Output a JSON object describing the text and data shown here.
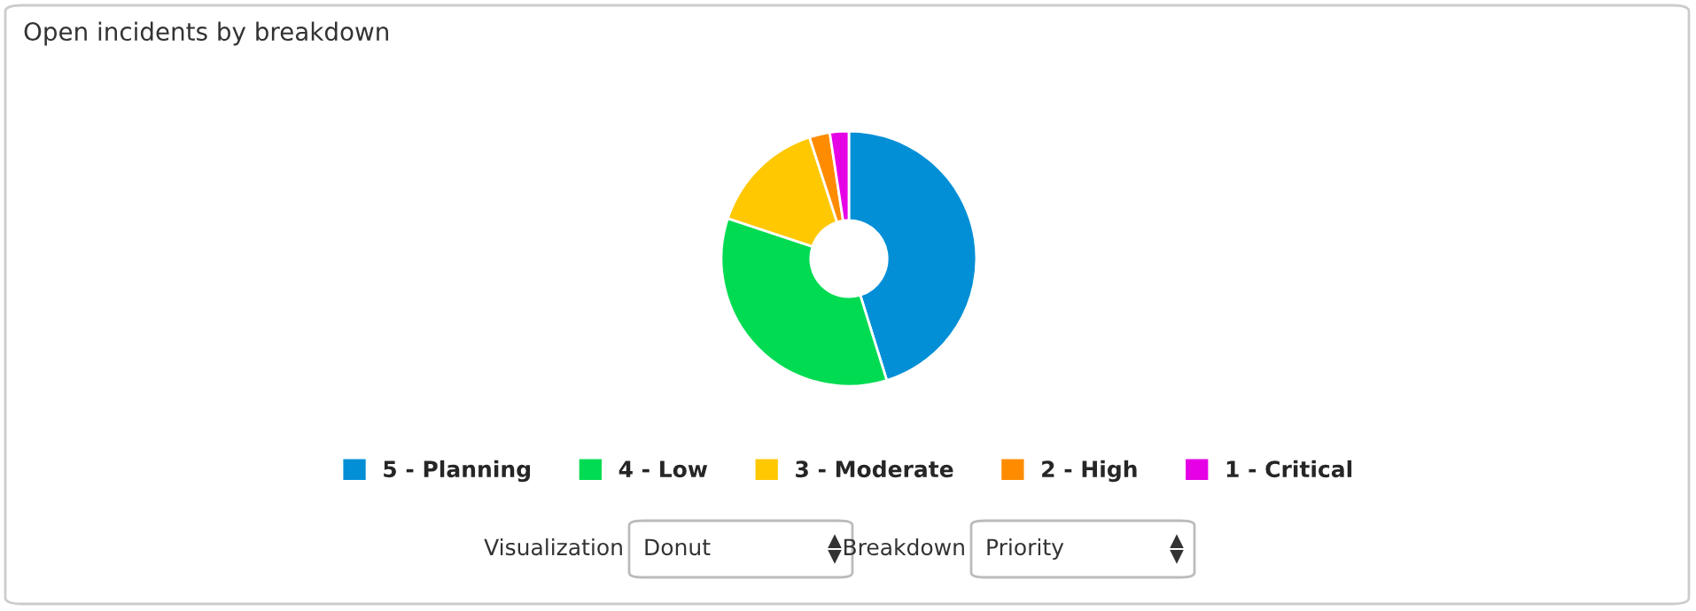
{
  "chart_data": {
    "type": "donut",
    "title": "Open incidents by breakdown",
    "categories": [
      "5 - Planning",
      "4 - Low",
      "3 - Moderate",
      "2 - High",
      "1 - Critical"
    ],
    "values": [
      45.2,
      34.9,
      14.9,
      2.6,
      2.4
    ],
    "colors": [
      "#038fd6",
      "#00db52",
      "#ffc800",
      "#ff8c00",
      "#e600e6"
    ],
    "legend": "bottom",
    "annotations": [
      "Visualization",
      "Donut",
      "Breakdown",
      "Priority"
    ]
  }
}
